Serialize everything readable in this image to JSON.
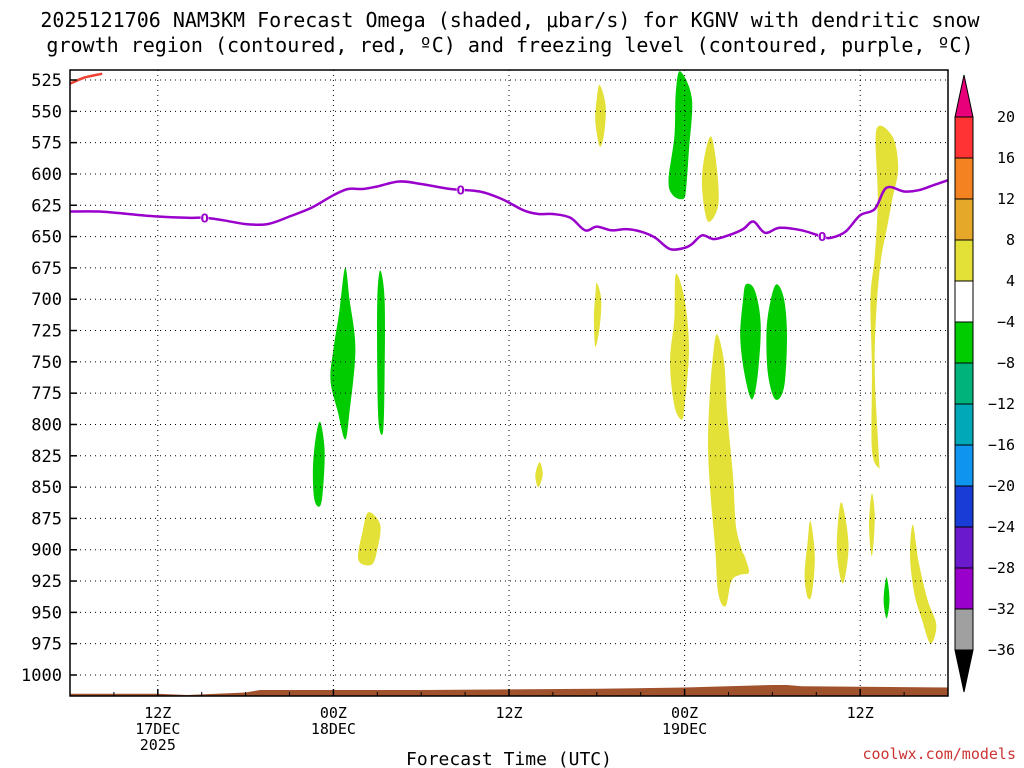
{
  "header": {
    "title_line1": "2025121706 NAM3KM Forecast Omega (shaded, μbar/s) for KGNV with dendritic snow",
    "title_line2": "growth region (contoured, red, ºC) and freezing level (contoured, purple, ºC)"
  },
  "footer": {
    "credit": "coolwx.com/models"
  },
  "chart_data": {
    "type": "time-height contour",
    "xlabel": "Forecast Time (UTC)",
    "ylabel": "",
    "yaxis": {
      "unit": "hPa",
      "inverted": true,
      "ticks": [
        525,
        550,
        575,
        600,
        625,
        650,
        675,
        700,
        725,
        750,
        775,
        800,
        825,
        850,
        875,
        900,
        925,
        950,
        975,
        1000
      ],
      "range": [
        1020,
        518
      ]
    },
    "xaxis": {
      "range_hours": [
        0,
        60
      ],
      "hours_note": "hours from 2025-12-17 06Z",
      "ticks": [
        {
          "hour": 6,
          "lines": [
            "12Z",
            "17DEC",
            "2025"
          ]
        },
        {
          "hour": 18,
          "lines": [
            "00Z",
            "18DEC"
          ]
        },
        {
          "hour": 30,
          "lines": [
            "12Z"
          ]
        },
        {
          "hour": 42,
          "lines": [
            "00Z",
            "19DEC"
          ]
        },
        {
          "hour": 54,
          "lines": [
            "12Z"
          ]
        }
      ]
    },
    "grid": true,
    "colorbar": {
      "labels": [
        "20",
        "16",
        "12",
        "8",
        "4",
        "−4",
        "−8",
        "−12",
        "−16",
        "−20",
        "−24",
        "−28",
        "−32",
        "−36"
      ],
      "colors": [
        "#e8007a",
        "#ff3333",
        "#f58220",
        "#e6a829",
        "#e3e038",
        "#ffffff",
        "#00cc00",
        "#00b37a",
        "#00a8b8",
        "#0f94f0",
        "#1a3cd6",
        "#6a1acc",
        "#9a00cc",
        "#a0a0a0",
        "#000000"
      ]
    },
    "freezing_level": {
      "color": "#9900cc",
      "label": "0",
      "label_hours": [
        9.2,
        26.7,
        51.4
      ],
      "points": [
        [
          0,
          630
        ],
        [
          2,
          630
        ],
        [
          4,
          632
        ],
        [
          6,
          634
        ],
        [
          8,
          635
        ],
        [
          9.2,
          635
        ],
        [
          10.5,
          637
        ],
        [
          12,
          640
        ],
        [
          13.5,
          640
        ],
        [
          15,
          634
        ],
        [
          16.5,
          627
        ],
        [
          18,
          617
        ],
        [
          19,
          612
        ],
        [
          20,
          612
        ],
        [
          21,
          610
        ],
        [
          22.5,
          606
        ],
        [
          24,
          608
        ],
        [
          26,
          612
        ],
        [
          28,
          614
        ],
        [
          29.5,
          620
        ],
        [
          31,
          629
        ],
        [
          32,
          632
        ],
        [
          33,
          632
        ],
        [
          34.2,
          635
        ],
        [
          35.2,
          645
        ],
        [
          36,
          642
        ],
        [
          37,
          645
        ],
        [
          38,
          644
        ],
        [
          39,
          646
        ],
        [
          40,
          651
        ],
        [
          41,
          660
        ],
        [
          42,
          659
        ],
        [
          42.5,
          656
        ],
        [
          43.2,
          649
        ],
        [
          44,
          652
        ],
        [
          45,
          649
        ],
        [
          46,
          644
        ],
        [
          46.7,
          638
        ],
        [
          47.5,
          647
        ],
        [
          48.5,
          643
        ],
        [
          50,
          645
        ],
        [
          51.4,
          650
        ],
        [
          52,
          651
        ],
        [
          53,
          646
        ],
        [
          54,
          633
        ],
        [
          55,
          628
        ],
        [
          55.8,
          611
        ],
        [
          57,
          614
        ],
        [
          58,
          613
        ],
        [
          59,
          609
        ],
        [
          60,
          605
        ]
      ]
    },
    "dgz_contour": {
      "color": "#ee4433",
      "points": [
        [
          0,
          528
        ],
        [
          1,
          523
        ],
        [
          2.2,
          520
        ]
      ]
    },
    "omega_regions": [
      {
        "value": "positive 4-8",
        "color": "#e3e038",
        "points": [
          [
            36.2,
            529
          ],
          [
            36.6,
            545
          ],
          [
            36.5,
            568
          ],
          [
            36.2,
            578
          ],
          [
            35.9,
            558
          ],
          [
            36.0,
            540
          ]
        ]
      },
      {
        "value": "negative -4 to -8",
        "color": "#00cc00",
        "points": [
          [
            41.7,
            518
          ],
          [
            42.5,
            540
          ],
          [
            42.3,
            580
          ],
          [
            42.1,
            612
          ],
          [
            41.9,
            620
          ],
          [
            41.2,
            617
          ],
          [
            40.9,
            605
          ],
          [
            41.3,
            570
          ],
          [
            41.4,
            535
          ]
        ]
      },
      {
        "value": "positive 4-8",
        "color": "#e3e038",
        "points": [
          [
            43.8,
            570
          ],
          [
            44.2,
            595
          ],
          [
            44.3,
            625
          ],
          [
            43.6,
            638
          ],
          [
            43.2,
            613
          ],
          [
            43.3,
            590
          ]
        ]
      },
      {
        "value": "positive 4-8",
        "color": "#e3e038",
        "points": [
          [
            41.4,
            680
          ],
          [
            42.0,
            700
          ],
          [
            42.3,
            740
          ],
          [
            42.0,
            785
          ],
          [
            41.8,
            796
          ],
          [
            41.3,
            785
          ],
          [
            41.0,
            750
          ],
          [
            41.3,
            715
          ]
        ]
      },
      {
        "value": "positive 4-8",
        "color": "#e3e038",
        "points": [
          [
            55.1,
            565
          ],
          [
            56.2,
            570
          ],
          [
            56.6,
            595
          ],
          [
            56.2,
            620
          ],
          [
            55.8,
            645
          ],
          [
            55.4,
            670
          ],
          [
            55.1,
            710
          ],
          [
            55.0,
            760
          ],
          [
            55.3,
            830
          ],
          [
            55.3,
            835
          ],
          [
            54.8,
            820
          ],
          [
            54.8,
            755
          ],
          [
            54.7,
            700
          ],
          [
            55.0,
            665
          ],
          [
            55.2,
            620
          ]
        ]
      },
      {
        "value": "negative -4 to -8",
        "color": "#00cc00",
        "points": [
          [
            18.8,
            675
          ],
          [
            19.1,
            700
          ],
          [
            19.5,
            740
          ],
          [
            19.1,
            790
          ],
          [
            18.8,
            812
          ],
          [
            18.3,
            790
          ],
          [
            17.8,
            765
          ],
          [
            18.0,
            740
          ],
          [
            18.4,
            710
          ]
        ]
      },
      {
        "value": "negative -4 to -8",
        "color": "#00cc00",
        "points": [
          [
            21.2,
            677
          ],
          [
            21.5,
            700
          ],
          [
            21.5,
            760
          ],
          [
            21.4,
            805
          ],
          [
            21.1,
            800
          ],
          [
            21.0,
            760
          ],
          [
            21.0,
            700
          ]
        ]
      },
      {
        "value": "positive 4-8",
        "color": "#e3e038",
        "points": [
          [
            36.0,
            687
          ],
          [
            36.3,
            700
          ],
          [
            36.2,
            722
          ],
          [
            35.9,
            738
          ],
          [
            35.8,
            715
          ],
          [
            35.9,
            697
          ]
        ]
      },
      {
        "value": "negative -4 to -8",
        "color": "#00cc00",
        "points": [
          [
            46.2,
            688
          ],
          [
            46.8,
            693
          ],
          [
            47.2,
            720
          ],
          [
            47.0,
            760
          ],
          [
            46.6,
            780
          ],
          [
            46.1,
            760
          ],
          [
            45.8,
            730
          ],
          [
            46.0,
            700
          ]
        ]
      },
      {
        "value": "negative -4 to -8",
        "color": "#00cc00",
        "points": [
          [
            48.3,
            688
          ],
          [
            48.8,
            700
          ],
          [
            49.0,
            730
          ],
          [
            48.8,
            770
          ],
          [
            48.2,
            780
          ],
          [
            47.7,
            760
          ],
          [
            47.6,
            725
          ],
          [
            47.9,
            700
          ]
        ]
      },
      {
        "value": "positive 4-8",
        "color": "#e3e038",
        "points": [
          [
            44.2,
            728
          ],
          [
            44.7,
            750
          ],
          [
            44.9,
            790
          ],
          [
            45.3,
            840
          ],
          [
            45.5,
            880
          ],
          [
            45.9,
            900
          ],
          [
            46.1,
            905
          ],
          [
            46.4,
            918
          ],
          [
            45.8,
            920
          ],
          [
            45.2,
            925
          ],
          [
            44.8,
            945
          ],
          [
            44.3,
            935
          ],
          [
            44.1,
            900
          ],
          [
            43.8,
            860
          ],
          [
            43.6,
            820
          ],
          [
            43.7,
            780
          ],
          [
            43.9,
            750
          ]
        ]
      },
      {
        "value": "negative -4 to -8",
        "color": "#00cc00",
        "points": [
          [
            17.1,
            798
          ],
          [
            17.4,
            820
          ],
          [
            17.3,
            850
          ],
          [
            17.1,
            865
          ],
          [
            16.7,
            860
          ],
          [
            16.6,
            835
          ],
          [
            16.8,
            810
          ]
        ]
      },
      {
        "value": "positive 4-8",
        "color": "#e3e038",
        "points": [
          [
            32.1,
            830
          ],
          [
            32.3,
            840
          ],
          [
            32.0,
            850
          ],
          [
            31.8,
            840
          ]
        ]
      },
      {
        "value": "positive 4-8",
        "color": "#e3e038",
        "points": [
          [
            20.4,
            870
          ],
          [
            21.2,
            880
          ],
          [
            21.0,
            900
          ],
          [
            20.6,
            912
          ],
          [
            19.7,
            908
          ],
          [
            20.0,
            885
          ]
        ]
      },
      {
        "value": "positive 4-8",
        "color": "#e3e038",
        "points": [
          [
            50.6,
            877
          ],
          [
            50.9,
            905
          ],
          [
            50.7,
            935
          ],
          [
            50.4,
            938
          ],
          [
            50.2,
            920
          ],
          [
            50.4,
            895
          ]
        ]
      },
      {
        "value": "positive 4-8",
        "color": "#e3e038",
        "points": [
          [
            52.7,
            862
          ],
          [
            53.2,
            895
          ],
          [
            52.9,
            925
          ],
          [
            52.6,
            920
          ],
          [
            52.4,
            895
          ]
        ]
      },
      {
        "value": "positive 4-8",
        "color": "#e3e038",
        "points": [
          [
            54.8,
            855
          ],
          [
            55.0,
            875
          ],
          [
            54.8,
            905
          ],
          [
            54.6,
            880
          ]
        ]
      },
      {
        "value": "positive 4-8",
        "color": "#e3e038",
        "points": [
          [
            57.6,
            880
          ],
          [
            58.0,
            910
          ],
          [
            58.6,
            940
          ],
          [
            59.2,
            960
          ],
          [
            58.8,
            975
          ],
          [
            58.2,
            955
          ],
          [
            57.7,
            935
          ],
          [
            57.4,
            905
          ]
        ]
      },
      {
        "value": "negative -4 to -8",
        "color": "#00cc00",
        "points": [
          [
            55.8,
            922
          ],
          [
            56.0,
            940
          ],
          [
            55.8,
            955
          ],
          [
            55.6,
            940
          ]
        ]
      }
    ],
    "terrain": {
      "color": "#a0522d",
      "points": [
        [
          0,
          1015
        ],
        [
          6,
          1015
        ],
        [
          8,
          1016
        ],
        [
          12,
          1014
        ],
        [
          13,
          1012
        ],
        [
          18,
          1012
        ],
        [
          24,
          1012
        ],
        [
          36,
          1011
        ],
        [
          42,
          1010
        ],
        [
          48,
          1008
        ],
        [
          49,
          1008
        ],
        [
          50,
          1009
        ],
        [
          60,
          1010
        ]
      ]
    }
  }
}
